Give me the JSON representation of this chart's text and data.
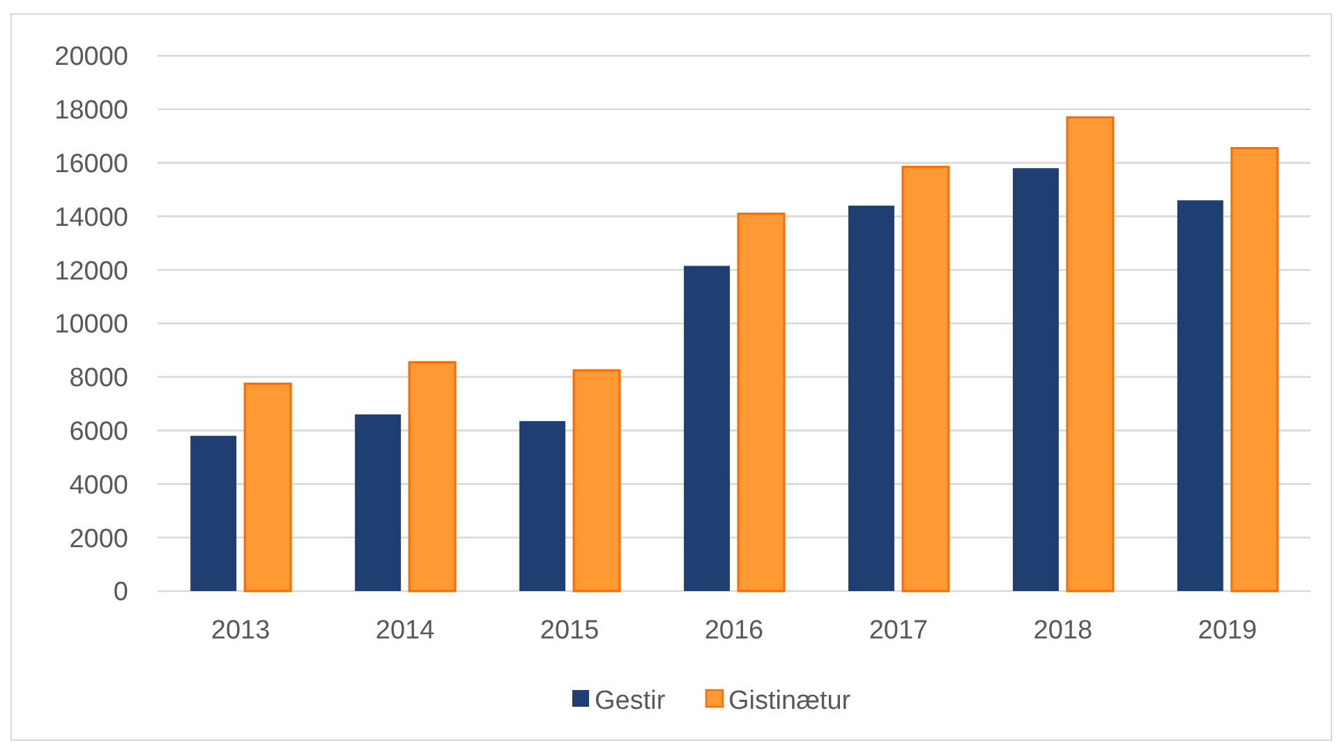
{
  "chart_data": {
    "type": "bar",
    "categories": [
      "2013",
      "2014",
      "2015",
      "2016",
      "2017",
      "2018",
      "2019"
    ],
    "series": [
      {
        "name": "Gestir",
        "color": "#1f3f73",
        "values": [
          5800,
          6600,
          6350,
          12150,
          14400,
          15800,
          14600
        ]
      },
      {
        "name": "Gistinætur",
        "color": "#ff9933",
        "values": [
          7750,
          8550,
          8250,
          14100,
          15850,
          17700,
          16550
        ]
      }
    ],
    "ylim": [
      0,
      20000
    ],
    "yticks": [
      0,
      2000,
      4000,
      6000,
      8000,
      10000,
      12000,
      14000,
      16000,
      18000,
      20000
    ],
    "grid": "y",
    "legend": "bottom"
  }
}
